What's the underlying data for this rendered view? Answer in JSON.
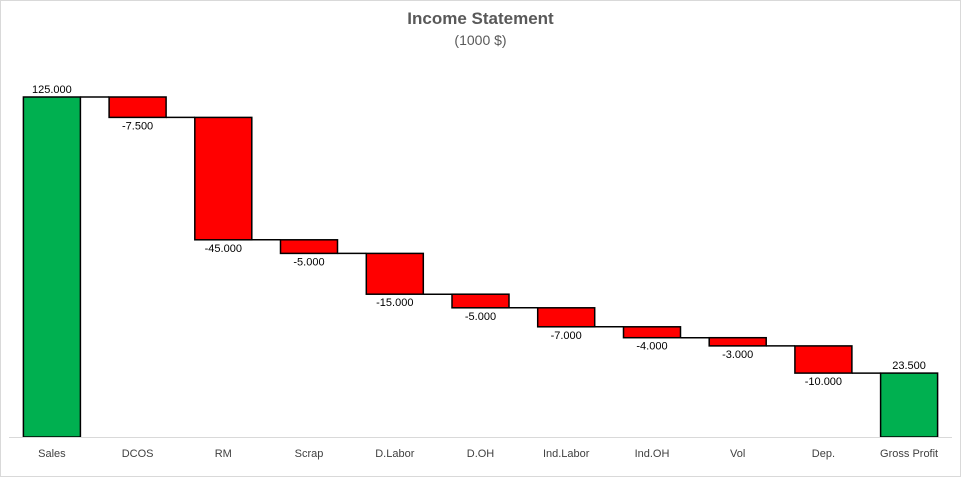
{
  "chart_data": {
    "type": "bar",
    "subtype": "waterfall",
    "title": "Income Statement",
    "subtitle": "(1000 $)",
    "xlabel": "",
    "ylabel": "",
    "categories": [
      "Sales",
      "DCOS",
      "RM",
      "Scrap",
      "D.Labor",
      "D.OH",
      "Ind.Labor",
      "Ind.OH",
      "Vol",
      "Dep.",
      "Gross Profit"
    ],
    "values": [
      125,
      -7.5,
      -45,
      -5,
      -15,
      -5,
      -7,
      -4,
      -3,
      -10,
      23.5
    ],
    "kinds": [
      "total",
      "delta",
      "delta",
      "delta",
      "delta",
      "delta",
      "delta",
      "delta",
      "delta",
      "delta",
      "total"
    ],
    "data_labels": [
      "125.000",
      "-7.500",
      "-45.000",
      "-5.000",
      "-15.000",
      "-5.000",
      "-7.000",
      "-4.000",
      "-3.000",
      "-10.000",
      "23.500"
    ],
    "ylim": [
      0,
      125
    ],
    "grid": false,
    "legend": "none",
    "colors": {
      "total": "#00b050",
      "decrease": "#ff0000",
      "outline": "#000000",
      "connector": "#000000",
      "axis": "#d9d9d9"
    }
  }
}
